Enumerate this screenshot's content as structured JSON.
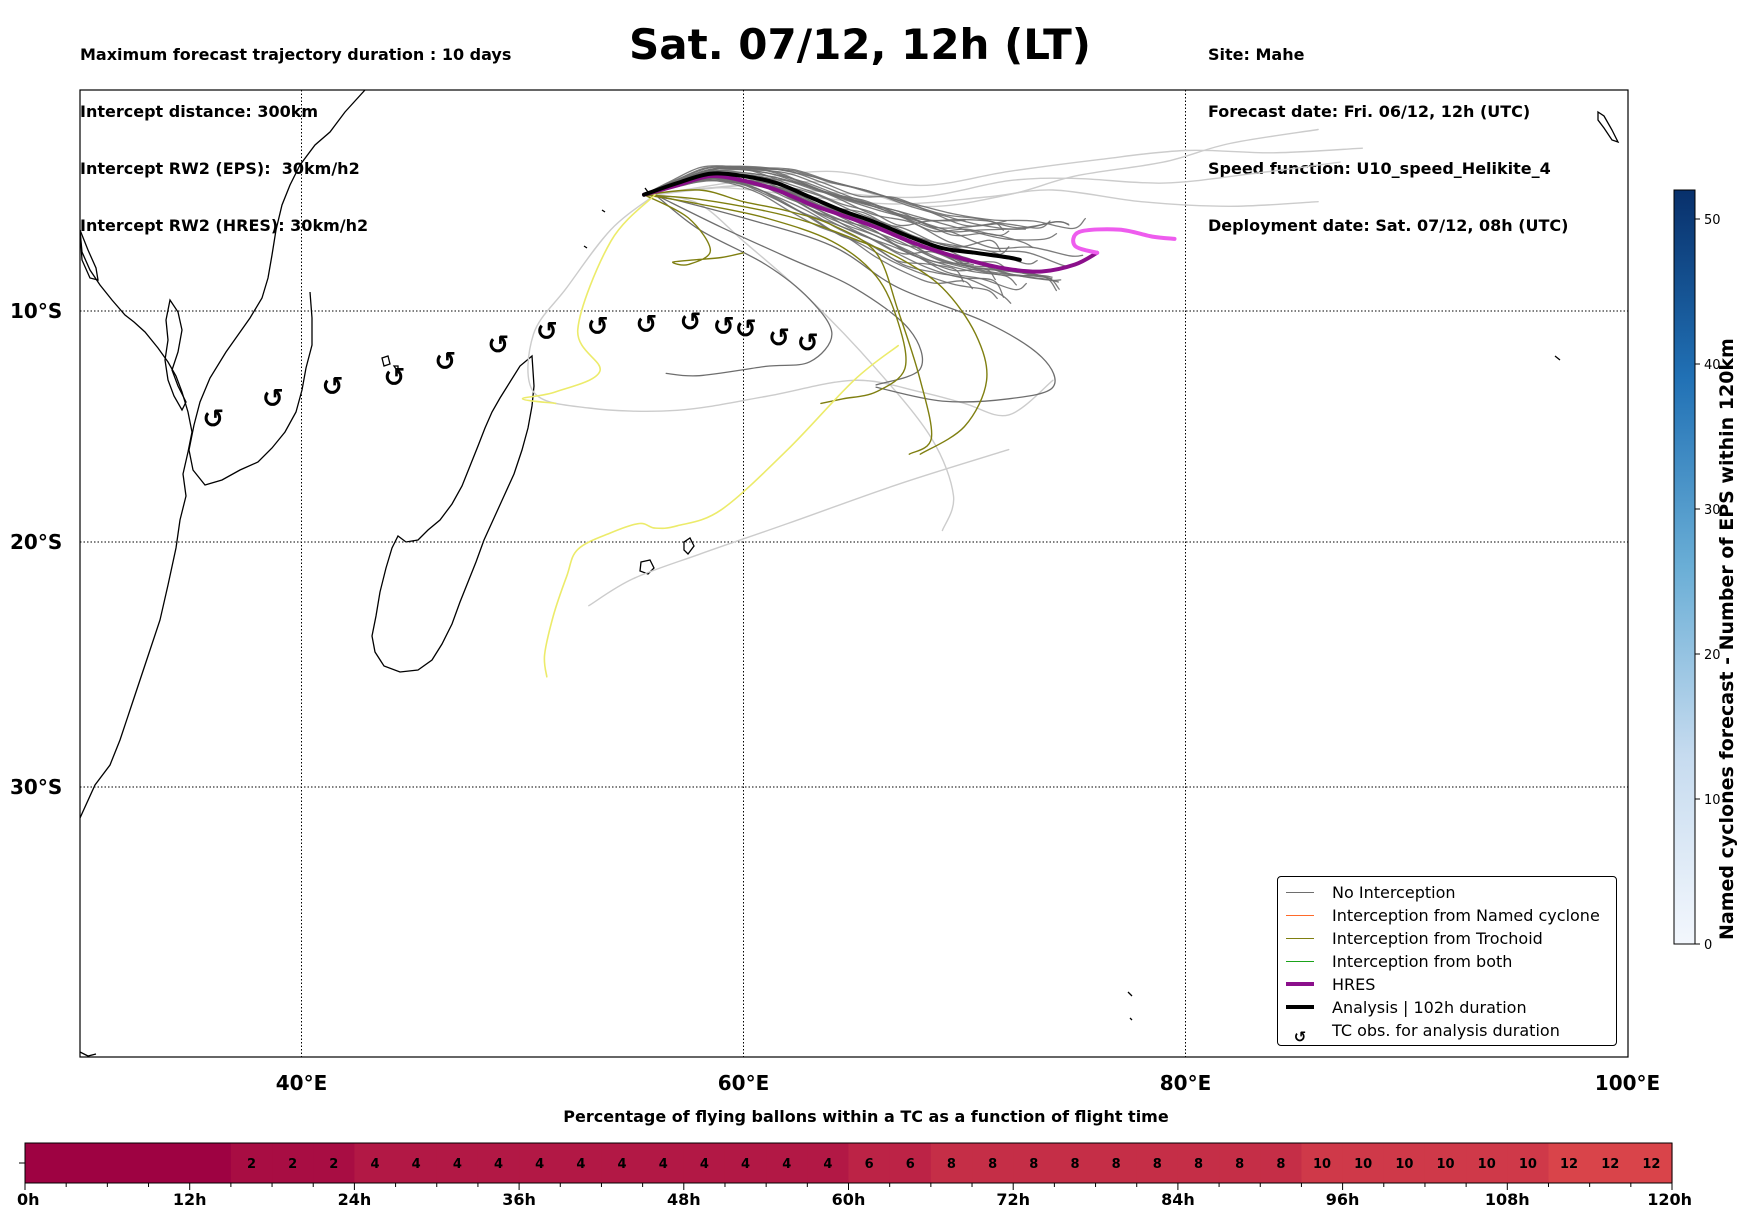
{
  "header": {
    "left": [
      "Maximum forecast trajectory duration : 10 days",
      "Intercept distance: 300km",
      "Intercept RW2 (EPS):  30km/h2",
      "Intercept RW2 (HRES): 30km/h2"
    ],
    "title": "Sat. 07/12, 12h (LT)",
    "right": [
      "Site: Mahe",
      "Forecast date: Fri. 06/12, 12h (UTC)",
      "Speed function: U10_speed_Helikite_4",
      "Deployment date: Sat. 07/12, 08h (UTC)"
    ]
  },
  "colors": {
    "no_interception": "#6e6e6e",
    "named_cyclone": "#ff6a2a",
    "trochoid": "#7f7f10",
    "both": "#1aa31a",
    "hres": "#8b0f8b",
    "hres_ext": "#ee5cee",
    "analysis": "#000000",
    "light_traj": "#cccccc",
    "yellow_traj": "#eceb6a"
  },
  "legend": [
    {
      "label": "No Interception",
      "style": "no_interception"
    },
    {
      "label": "Interception from Named cyclone",
      "style": "named_cyclone"
    },
    {
      "label": "Interception from Trochoid",
      "style": "trochoid"
    },
    {
      "label": "Interception from both",
      "style": "both"
    },
    {
      "label": "HRES",
      "style": "hres"
    },
    {
      "label": "Analysis | 102h duration",
      "style": "analysis"
    },
    {
      "label": "TC obs. for analysis duration",
      "style": "tc_symbol"
    }
  ],
  "map_axes": {
    "lon_ticks": [
      "40°E",
      "60°E",
      "80°E",
      "100°E"
    ],
    "lat_ticks": [
      "10°S",
      "20°S",
      "30°S"
    ]
  },
  "colorbar": {
    "label": "Named cyclones forecast - Number of EPS within 120km",
    "ticks": [
      "0",
      "10",
      "20",
      "30",
      "40",
      "50"
    ]
  },
  "bottom_bar": {
    "title": "Percentage of flying ballons within a TC as a function of flight time",
    "time_labels": [
      "0h",
      "12h",
      "24h",
      "36h",
      "48h",
      "60h",
      "72h",
      "84h",
      "96h",
      "108h",
      "120h"
    ]
  },
  "chart_data": [
    {
      "type": "line",
      "title": "Sat. 07/12, 12h (LT)",
      "xlabel": "",
      "ylabel": "",
      "x_unit": "longitude (degrees E)",
      "y_unit": "latitude (degrees, negative = S)",
      "xlim": [
        30,
        100
      ],
      "ylim": [
        -43,
        -0.5
      ],
      "grid": true,
      "legend_position": "lower-right",
      "analysis_track": {
        "name": "Analysis | 102h duration",
        "x": [
          55.5,
          57,
          58.5,
          60,
          61.5,
          63,
          64.5,
          66,
          67.5,
          69,
          70.5,
          72,
          72.5
        ],
        "y": [
          -5.0,
          -4.5,
          -4.1,
          -4.2,
          -4.5,
          -5.1,
          -5.7,
          -6.2,
          -6.8,
          -7.3,
          -7.5,
          -7.7,
          -7.8
        ]
      },
      "hres_track": {
        "name": "HRES",
        "x": [
          55.5,
          57,
          58.5,
          60,
          61.5,
          63,
          64.5,
          66,
          67.5,
          69,
          70.5,
          72,
          73.5,
          75,
          76
        ],
        "y": [
          -5.0,
          -4.6,
          -4.2,
          -4.4,
          -4.8,
          -5.4,
          -5.9,
          -6.4,
          -7.0,
          -7.5,
          -7.9,
          -8.2,
          -8.3,
          -8.0,
          -7.5
        ]
      },
      "hres_extension": {
        "x": [
          76,
          75,
          75.2,
          77,
          78.5,
          79.5
        ],
        "y": [
          -7.5,
          -7.2,
          -6.6,
          -6.5,
          -6.8,
          -6.9
        ]
      },
      "tc_observations": {
        "x": [
          36,
          38.7,
          41.4,
          44.2,
          46.5,
          48.9,
          51.1,
          53.4,
          55.6,
          57.6,
          59.1,
          60.1,
          61.6,
          62.9
        ],
        "y": [
          -14.7,
          -13.8,
          -13.3,
          -12.9,
          -12.2,
          -11.5,
          -10.9,
          -10.7,
          -10.6,
          -10.5,
          -10.7,
          -10.8,
          -11.2,
          -11.4
        ]
      },
      "eps_trochoid_tracks": [
        {
          "x": [
            55.5,
            58,
            60,
            62,
            64,
            66,
            67,
            68,
            68.5,
            67.5
          ],
          "y": [
            -5.0,
            -4.8,
            -5.3,
            -5.7,
            -6.3,
            -7.5,
            -10,
            -13,
            -15.5,
            -16.2
          ]
        },
        {
          "x": [
            55.5,
            58,
            61,
            63,
            65,
            67,
            69,
            70.5,
            71,
            70,
            68
          ],
          "y": [
            -5.0,
            -5.2,
            -5.7,
            -6.2,
            -6.9,
            -7.7,
            -9,
            -11,
            -13,
            -15,
            -16.2
          ]
        },
        {
          "x": [
            55.5,
            58,
            61,
            64,
            66,
            67,
            67.3,
            66,
            64.5,
            63.5
          ],
          "y": [
            -5.0,
            -5.4,
            -6.0,
            -7.0,
            -8.5,
            -10.5,
            -12.5,
            -13.5,
            -13.8,
            -14
          ]
        },
        {
          "x": [
            55.5,
            57.5,
            58.5,
            57.5,
            56.8,
            57.8,
            59,
            60
          ],
          "y": [
            -5.0,
            -6.0,
            -7.4,
            -8.0,
            -7.9,
            -7.8,
            -7.7,
            -7.5
          ]
        }
      ],
      "eps_light_tracks": [
        {
          "x": [
            56,
            60,
            64,
            68,
            72,
            76,
            80,
            84,
            88
          ],
          "y": [
            -5.0,
            -4.4,
            -4.0,
            -4.6,
            -4.0,
            -3.5,
            -3.1,
            -3.2,
            -3.0
          ]
        },
        {
          "x": [
            56,
            60,
            64,
            68,
            72,
            75,
            79,
            82,
            86
          ],
          "y": [
            -5.0,
            -4.6,
            -4.5,
            -5.5,
            -5.0,
            -4.2,
            -3.6,
            -2.8,
            -2.2
          ]
        },
        {
          "x": [
            56,
            60,
            64,
            68,
            72,
            75,
            79,
            83,
            87
          ],
          "y": [
            -5.0,
            -4.6,
            -4.9,
            -5.1,
            -4.4,
            -4.3,
            -4.5,
            -4.1,
            -3.6
          ]
        },
        {
          "x": [
            56,
            59,
            63,
            67,
            71,
            74,
            78,
            82,
            86
          ],
          "y": [
            -5.0,
            -4.7,
            -5.1,
            -5.4,
            -5.1,
            -4.8,
            -5.3,
            -5.5,
            -5.3
          ]
        },
        {
          "x": [
            56,
            58,
            60,
            63,
            66,
            68.5,
            69.5,
            69
          ],
          "y": [
            -5.0,
            -5.4,
            -7.0,
            -9.5,
            -12.5,
            -15.5,
            -18,
            -19.5
          ]
        },
        {
          "x": [
            56,
            54,
            52,
            50.5,
            50.5,
            53,
            57,
            61,
            65,
            68,
            70,
            72,
            74
          ],
          "y": [
            -5.0,
            -6.5,
            -9.0,
            -11.0,
            -13.5,
            -14.2,
            -14.3,
            -13.7,
            -13.0,
            -13.5,
            -14.0,
            -14.5,
            -13.0
          ]
        },
        {
          "x": [
            72,
            67,
            62,
            58,
            55,
            53
          ],
          "y": [
            -16.0,
            -17.5,
            -19.2,
            -20.5,
            -21.5,
            -22.6
          ]
        }
      ],
      "eps_yellow_tracks": [
        {
          "x": [
            56,
            54,
            52.5,
            53.5,
            51.5,
            50,
            51.5
          ],
          "y": [
            -5.0,
            -7.0,
            -10.8,
            -12.6,
            -13.5,
            -13.8,
            -14.0
          ]
        },
        {
          "x": [
            67,
            65,
            62,
            59,
            57,
            56,
            55.3,
            54,
            52.5,
            52,
            51.4,
            51,
            51.1
          ],
          "y": [
            -11.5,
            -13.0,
            -16.0,
            -18.6,
            -19.3,
            -19.4,
            -19.2,
            -19.6,
            -20.3,
            -21.4,
            -23.0,
            -24.6,
            -25.5
          ]
        }
      ]
    },
    {
      "type": "bar",
      "title": "Percentage of flying ballons within a TC as a function of flight time",
      "xlabel": "",
      "x_unit": "hours of flight",
      "xlim": [
        0,
        120
      ],
      "bin_width_hours": 3,
      "values": [
        0,
        0,
        0,
        0,
        0,
        2,
        2,
        2,
        4,
        4,
        4,
        4,
        4,
        4,
        4,
        4,
        4,
        4,
        4,
        4,
        6,
        6,
        8,
        8,
        8,
        8,
        8,
        8,
        8,
        8,
        8,
        10,
        10,
        10,
        10,
        10,
        10,
        12,
        12,
        12
      ]
    }
  ]
}
